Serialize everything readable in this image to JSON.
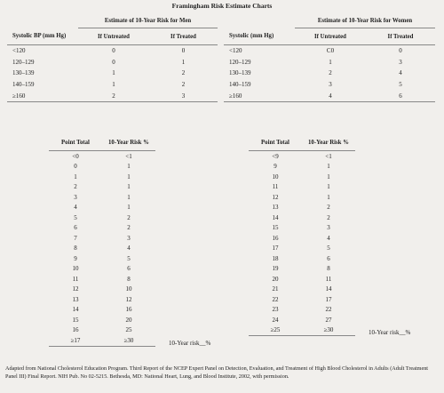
{
  "title": "Framingham Risk Estimate Charts",
  "men_bp": {
    "heading": "Estimate of 10-Year Risk for Men",
    "columns": [
      "Systolic BP (mm Hg)",
      "If Untreated",
      "If Treated"
    ],
    "rows": [
      [
        "<120",
        "0",
        "0"
      ],
      [
        "120–129",
        "0",
        "1"
      ],
      [
        "130–139",
        "1",
        "2"
      ],
      [
        "140–159",
        "1",
        "2"
      ],
      [
        "≥160",
        "2",
        "3"
      ]
    ]
  },
  "women_bp": {
    "heading": "Estimate of 10-Year Risk for Women",
    "columns": [
      "Systolic (mm Hg)",
      "If Untreated",
      "If Treated"
    ],
    "rows": [
      [
        "<120",
        "C0",
        "0"
      ],
      [
        "120–129",
        "1",
        "3"
      ],
      [
        "130–139",
        "2",
        "4"
      ],
      [
        "140–159",
        "3",
        "5"
      ],
      [
        "≥160",
        "4",
        "6"
      ]
    ]
  },
  "men_points": {
    "columns": [
      "Point Total",
      "10-Year Risk %"
    ],
    "rows": [
      [
        "<0",
        "<1"
      ],
      [
        "0",
        "1"
      ],
      [
        "1",
        "1"
      ],
      [
        "2",
        "1"
      ],
      [
        "3",
        "1"
      ],
      [
        "4",
        "1"
      ],
      [
        "5",
        "2"
      ],
      [
        "6",
        "2"
      ],
      [
        "7",
        "3"
      ],
      [
        "8",
        "4"
      ],
      [
        "9",
        "5"
      ],
      [
        "10",
        "6"
      ],
      [
        "11",
        "8"
      ],
      [
        "12",
        "10"
      ],
      [
        "13",
        "12"
      ],
      [
        "14",
        "16"
      ],
      [
        "15",
        "20"
      ],
      [
        "16",
        "25"
      ],
      [
        "≥17",
        "≥30"
      ]
    ],
    "note": "10-Year risk__%"
  },
  "women_points": {
    "columns": [
      "Point Total",
      "10-Year Risk %"
    ],
    "rows": [
      [
        "<9",
        "<1"
      ],
      [
        "9",
        "1"
      ],
      [
        "10",
        "1"
      ],
      [
        "11",
        "1"
      ],
      [
        "12",
        "1"
      ],
      [
        "13",
        "2"
      ],
      [
        "14",
        "2"
      ],
      [
        "15",
        "3"
      ],
      [
        "16",
        "4"
      ],
      [
        "17",
        "5"
      ],
      [
        "18",
        "6"
      ],
      [
        "19",
        "8"
      ],
      [
        "20",
        "11"
      ],
      [
        "21",
        "14"
      ],
      [
        "22",
        "17"
      ],
      [
        "23",
        "22"
      ],
      [
        "24",
        "27"
      ],
      [
        "≥25",
        "≥30"
      ]
    ],
    "note": "10-Year risk__%"
  },
  "footer": "Adapted from National Cholesterol Education Program. Third Report of the NCEP Expert Panel on Detection, Evaluation, and Treatment of High Blood Cholesterol in Adults (Adult Treatment Panel III) Final Report. NIH Pub. No 02-5215. Bethesda, MD: National Heart, Lung, and Blood Institute, 2002, with permission."
}
